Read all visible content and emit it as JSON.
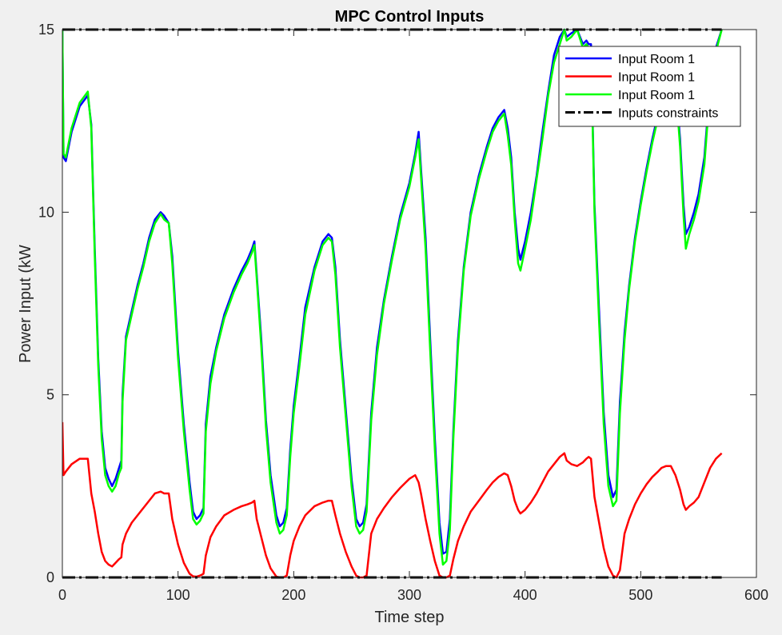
{
  "chart_data": {
    "type": "line",
    "title": "MPC Control Inputs",
    "xlabel": "Time step",
    "ylabel": "Power Input (kW",
    "xlim": [
      0,
      600
    ],
    "ylim": [
      0,
      15
    ],
    "xticks": [
      0,
      100,
      200,
      300,
      400,
      500,
      600
    ],
    "yticks": [
      0,
      5,
      10,
      15
    ],
    "grid": false,
    "legend_position": "top-right",
    "series": [
      {
        "name": "Input Room 1",
        "color": "#0000ff",
        "style": "solid",
        "x": [
          0,
          1,
          3,
          8,
          15,
          22,
          25,
          28,
          31,
          34,
          37,
          40,
          43,
          46,
          49,
          51,
          52,
          55,
          60,
          65,
          70,
          75,
          80,
          85,
          88,
          92,
          95,
          100,
          105,
          110,
          113,
          116,
          119,
          122,
          124,
          128,
          133,
          140,
          148,
          155,
          160,
          164,
          166,
          168,
          172,
          176,
          180,
          185,
          188,
          191,
          194,
          197,
          200,
          205,
          210,
          218,
          225,
          230,
          233,
          236,
          240,
          245,
          250,
          254,
          257,
          260,
          263,
          267,
          272,
          278,
          285,
          292,
          300,
          305,
          308,
          310,
          314,
          318,
          322,
          326,
          329,
          332,
          335,
          338,
          342,
          347,
          353,
          360,
          367,
          372,
          377,
          382,
          385,
          388,
          391,
          394,
          396,
          400,
          405,
          410,
          415,
          420,
          425,
          430,
          434,
          436,
          440,
          445,
          450,
          453,
          455,
          457,
          460,
          464,
          468,
          472,
          476,
          479,
          482,
          486,
          490,
          495,
          500,
          505,
          510,
          515,
          518,
          522,
          526,
          530,
          534,
          537,
          539,
          542,
          546,
          550,
          555,
          560,
          565,
          570
        ],
        "y": [
          15,
          11.5,
          11.4,
          12.2,
          12.9,
          13.2,
          12.4,
          9.0,
          6.0,
          4.0,
          3.0,
          2.7,
          2.5,
          2.7,
          3.0,
          3.2,
          5.0,
          6.6,
          7.3,
          8.0,
          8.6,
          9.3,
          9.8,
          10.0,
          9.9,
          9.7,
          8.8,
          6.2,
          4.2,
          2.6,
          1.8,
          1.6,
          1.7,
          1.9,
          4.2,
          5.5,
          6.3,
          7.2,
          7.9,
          8.4,
          8.7,
          9.0,
          9.2,
          8.3,
          6.5,
          4.3,
          2.8,
          1.7,
          1.4,
          1.5,
          1.9,
          3.5,
          4.7,
          6.0,
          7.4,
          8.5,
          9.2,
          9.4,
          9.3,
          8.5,
          6.5,
          4.6,
          2.7,
          1.6,
          1.4,
          1.5,
          2.0,
          4.5,
          6.3,
          7.6,
          8.8,
          9.9,
          10.8,
          11.6,
          12.2,
          11.2,
          9.3,
          6.5,
          3.8,
          1.5,
          0.65,
          0.7,
          1.6,
          4.0,
          6.5,
          8.5,
          10.0,
          11.0,
          11.8,
          12.3,
          12.6,
          12.8,
          12.3,
          11.5,
          10.0,
          9.0,
          8.7,
          9.2,
          10.0,
          11.0,
          12.2,
          13.3,
          14.3,
          14.8,
          15.0,
          14.8,
          14.9,
          15.0,
          14.6,
          14.7,
          14.6,
          14.6,
          10.2,
          7.3,
          4.5,
          2.8,
          2.2,
          2.4,
          4.8,
          6.7,
          8.0,
          9.3,
          10.3,
          11.2,
          12.0,
          12.7,
          13.2,
          13.8,
          14.0,
          13.6,
          12.0,
          10.2,
          9.4,
          9.6,
          10.0,
          10.5,
          11.5,
          13.5,
          14.5,
          15.0
        ]
      },
      {
        "name": "Input Room 1",
        "color": "#ff0000",
        "style": "solid",
        "x": [
          0,
          1,
          3,
          8,
          15,
          22,
          25,
          28,
          31,
          34,
          37,
          40,
          43,
          46,
          49,
          51,
          52,
          55,
          60,
          65,
          70,
          75,
          80,
          85,
          88,
          92,
          95,
          100,
          105,
          110,
          113,
          116,
          119,
          122,
          124,
          128,
          133,
          140,
          148,
          155,
          160,
          164,
          166,
          168,
          172,
          176,
          180,
          185,
          188,
          191,
          194,
          197,
          200,
          205,
          210,
          218,
          225,
          230,
          233,
          236,
          240,
          245,
          250,
          254,
          257,
          260,
          263,
          267,
          272,
          278,
          285,
          292,
          300,
          305,
          308,
          310,
          314,
          318,
          322,
          326,
          329,
          332,
          335,
          338,
          342,
          347,
          353,
          360,
          367,
          372,
          377,
          382,
          385,
          388,
          391,
          394,
          396,
          400,
          405,
          410,
          415,
          420,
          425,
          430,
          434,
          436,
          440,
          445,
          450,
          453,
          455,
          457,
          460,
          464,
          468,
          472,
          476,
          479,
          482,
          486,
          490,
          495,
          500,
          505,
          510,
          515,
          518,
          522,
          526,
          530,
          534,
          537,
          539,
          542,
          546,
          550,
          555,
          560,
          565,
          570
        ],
        "y": [
          4.25,
          2.8,
          2.9,
          3.1,
          3.25,
          3.25,
          2.3,
          1.8,
          1.2,
          0.7,
          0.45,
          0.35,
          0.3,
          0.4,
          0.5,
          0.55,
          0.9,
          1.2,
          1.5,
          1.7,
          1.9,
          2.1,
          2.3,
          2.35,
          2.3,
          2.3,
          1.6,
          0.9,
          0.4,
          0.1,
          0.03,
          0.02,
          0.05,
          0.1,
          0.6,
          1.1,
          1.4,
          1.7,
          1.85,
          1.95,
          2.0,
          2.05,
          2.1,
          1.6,
          1.1,
          0.6,
          0.25,
          0.02,
          0.0,
          0.0,
          0.05,
          0.6,
          1.0,
          1.4,
          1.7,
          1.95,
          2.05,
          2.1,
          2.1,
          1.7,
          1.2,
          0.7,
          0.3,
          0.05,
          0.0,
          0.0,
          0.05,
          1.2,
          1.6,
          1.9,
          2.2,
          2.45,
          2.7,
          2.8,
          2.6,
          2.3,
          1.6,
          1.0,
          0.45,
          0.05,
          0.0,
          0.0,
          0.05,
          0.5,
          1.0,
          1.4,
          1.8,
          2.1,
          2.4,
          2.6,
          2.75,
          2.85,
          2.8,
          2.5,
          2.1,
          1.85,
          1.75,
          1.85,
          2.05,
          2.3,
          2.6,
          2.9,
          3.1,
          3.3,
          3.4,
          3.2,
          3.1,
          3.05,
          3.15,
          3.25,
          3.3,
          3.25,
          2.2,
          1.5,
          0.8,
          0.3,
          0.05,
          0.0,
          0.2,
          1.2,
          1.6,
          2.0,
          2.3,
          2.55,
          2.75,
          2.9,
          3.0,
          3.05,
          3.05,
          2.8,
          2.4,
          2.0,
          1.85,
          1.95,
          2.05,
          2.2,
          2.6,
          3.0,
          3.25,
          3.4
        ]
      },
      {
        "name": "Input Room 1",
        "color": "#00ff00",
        "style": "solid",
        "x": [
          0,
          1,
          3,
          8,
          15,
          22,
          25,
          28,
          31,
          34,
          37,
          40,
          43,
          46,
          49,
          51,
          52,
          55,
          60,
          65,
          70,
          75,
          80,
          85,
          88,
          92,
          95,
          100,
          105,
          110,
          113,
          116,
          119,
          122,
          124,
          128,
          133,
          140,
          148,
          155,
          160,
          164,
          166,
          168,
          172,
          176,
          180,
          185,
          188,
          191,
          194,
          197,
          200,
          205,
          210,
          218,
          225,
          230,
          233,
          236,
          240,
          245,
          250,
          254,
          257,
          260,
          263,
          267,
          272,
          278,
          285,
          292,
          300,
          305,
          308,
          310,
          314,
          318,
          322,
          326,
          329,
          332,
          335,
          338,
          342,
          347,
          353,
          360,
          367,
          372,
          377,
          382,
          385,
          388,
          391,
          394,
          396,
          400,
          405,
          410,
          415,
          420,
          425,
          430,
          434,
          436,
          440,
          445,
          450,
          453,
          455,
          457,
          460,
          464,
          468,
          472,
          476,
          479,
          482,
          486,
          490,
          495,
          500,
          505,
          510,
          515,
          518,
          522,
          526,
          530,
          534,
          537,
          539,
          542,
          546,
          550,
          555,
          560,
          565,
          570
        ],
        "y": [
          15,
          11.6,
          11.5,
          12.3,
          13.0,
          13.3,
          12.3,
          8.8,
          5.8,
          3.8,
          2.8,
          2.5,
          2.35,
          2.5,
          2.85,
          3.0,
          4.8,
          6.5,
          7.2,
          7.9,
          8.5,
          9.2,
          9.7,
          9.95,
          9.8,
          9.7,
          8.6,
          6.0,
          4.0,
          2.4,
          1.6,
          1.45,
          1.55,
          1.75,
          4.0,
          5.3,
          6.2,
          7.1,
          7.8,
          8.3,
          8.6,
          8.9,
          9.1,
          8.2,
          6.3,
          4.1,
          2.6,
          1.5,
          1.2,
          1.3,
          1.7,
          3.3,
          4.5,
          5.8,
          7.2,
          8.4,
          9.1,
          9.3,
          9.2,
          8.3,
          6.3,
          4.4,
          2.5,
          1.4,
          1.2,
          1.3,
          1.8,
          4.3,
          6.1,
          7.5,
          8.7,
          9.8,
          10.7,
          11.5,
          12.0,
          11.0,
          9.0,
          6.2,
          3.5,
          1.2,
          0.35,
          0.45,
          1.3,
          3.8,
          6.3,
          8.4,
          9.9,
          10.9,
          11.7,
          12.2,
          12.5,
          12.7,
          12.1,
          11.3,
          9.8,
          8.6,
          8.4,
          9.0,
          9.8,
          10.9,
          12.0,
          13.2,
          14.1,
          14.6,
          15.0,
          14.7,
          14.8,
          15.0,
          14.5,
          14.6,
          14.5,
          14.5,
          10.0,
          7.0,
          4.2,
          2.5,
          1.95,
          2.1,
          4.5,
          6.5,
          7.9,
          9.2,
          10.2,
          11.1,
          11.9,
          12.6,
          13.1,
          13.7,
          13.9,
          13.5,
          11.8,
          9.9,
          9.0,
          9.4,
          9.8,
          10.3,
          11.3,
          13.4,
          14.4,
          15.0
        ]
      },
      {
        "name": "Inputs constraints",
        "color": "#000000",
        "style": "dashdot",
        "x": [
          0,
          570
        ],
        "y": [
          15,
          15
        ]
      },
      {
        "name": "",
        "color": "#000000",
        "style": "dashdot",
        "x": [
          0,
          570
        ],
        "y": [
          0,
          0
        ]
      }
    ]
  }
}
